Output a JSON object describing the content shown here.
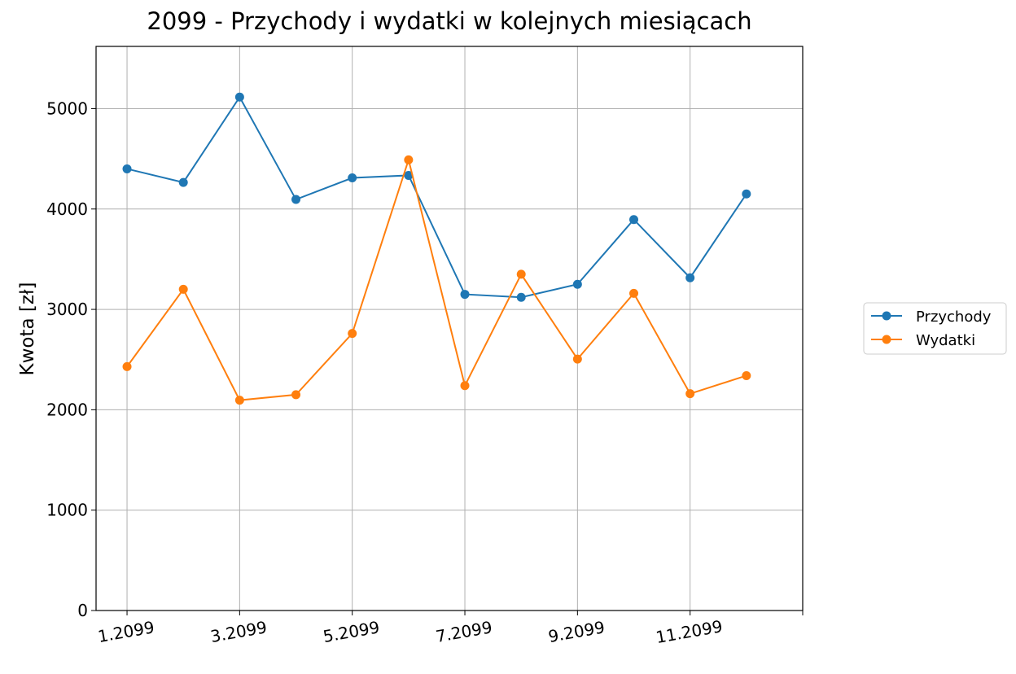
{
  "chart_data": {
    "type": "line",
    "title": "2099 - Przychody i wydatki w kolejnych miesiącach",
    "xlabel": "",
    "ylabel": "Kwota [zł]",
    "x": [
      1,
      2,
      3,
      4,
      5,
      6,
      7,
      8,
      9,
      10,
      11,
      12
    ],
    "xticks": [
      1,
      3,
      5,
      7,
      9,
      11,
      13
    ],
    "xtick_labels": [
      "1.2099",
      "3.2099",
      "5.2099",
      "7.2099",
      "9.2099",
      "11.2099",
      ""
    ],
    "xlim": [
      0.45,
      13
    ],
    "ylim": [
      0,
      5620
    ],
    "yticks": [
      0,
      1000,
      2000,
      3000,
      4000,
      5000
    ],
    "grid": true,
    "legend_position": "right, outside plot",
    "series": [
      {
        "name": "Przychody",
        "color": "#1f77b4",
        "marker": "circle",
        "values": [
          4400,
          4265,
          5115,
          4095,
          4310,
          4335,
          3150,
          3120,
          3250,
          3895,
          3315,
          4150
        ]
      },
      {
        "name": "Wydatki",
        "color": "#ff7f0e",
        "marker": "circle",
        "values": [
          2430,
          3200,
          2095,
          2150,
          2760,
          4490,
          2240,
          3350,
          2505,
          3160,
          2160,
          2340
        ]
      }
    ]
  }
}
